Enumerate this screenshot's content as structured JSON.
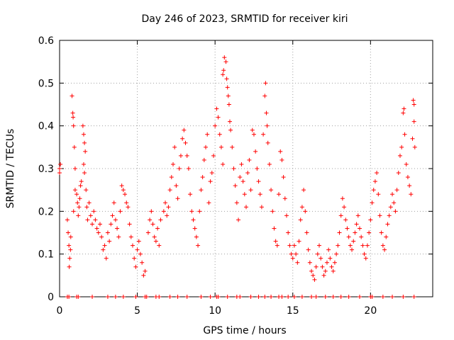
{
  "chart_data": {
    "type": "scatter",
    "title": "Day 246 of 2023, SRMTID for receiver kiri",
    "xlabel": "GPS time / hours",
    "ylabel": "SRMTID / TECUs",
    "xlim": [
      0,
      24
    ],
    "ylim": [
      0,
      0.6
    ],
    "xticks": [
      0,
      5,
      10,
      15,
      20
    ],
    "xtick_labels": [
      "0",
      "5",
      "10",
      "15",
      "20"
    ],
    "yticks": [
      0,
      0.1,
      0.2,
      0.3,
      0.4,
      0.5,
      0.6
    ],
    "ytick_labels": [
      "0",
      "0.1",
      "0.2",
      "0.3",
      "0.4",
      "0.5",
      "0.6"
    ],
    "grid": true,
    "marker": "+",
    "color": "#ff0000",
    "series": [
      {
        "name": "SRMTID",
        "points": [
          [
            0.0,
            0.3
          ],
          [
            0.0,
            0.29
          ],
          [
            0.05,
            0.31
          ],
          [
            0.5,
            0.18
          ],
          [
            0.55,
            0.15
          ],
          [
            0.6,
            0.12
          ],
          [
            0.62,
            0.07
          ],
          [
            0.65,
            0.09
          ],
          [
            0.7,
            0.11
          ],
          [
            0.72,
            0.14
          ],
          [
            0.8,
            0.47
          ],
          [
            0.85,
            0.43
          ],
          [
            0.87,
            0.42
          ],
          [
            0.9,
            0.4
          ],
          [
            0.95,
            0.35
          ],
          [
            1.0,
            0.3
          ],
          [
            1.0,
            0.25
          ],
          [
            0.9,
            0.2
          ],
          [
            1.1,
            0.24
          ],
          [
            1.15,
            0.22
          ],
          [
            1.2,
            0.19
          ],
          [
            1.25,
            0.21
          ],
          [
            1.3,
            0.23
          ],
          [
            1.35,
            0.26
          ],
          [
            1.4,
            0.27
          ],
          [
            1.5,
            0.4
          ],
          [
            1.55,
            0.38
          ],
          [
            1.6,
            0.36
          ],
          [
            1.65,
            0.34
          ],
          [
            1.55,
            0.31
          ],
          [
            1.6,
            0.29
          ],
          [
            1.7,
            0.25
          ],
          [
            1.75,
            0.21
          ],
          [
            1.8,
            0.18
          ],
          [
            1.9,
            0.22
          ],
          [
            2.0,
            0.19
          ],
          [
            2.1,
            0.17
          ],
          [
            2.2,
            0.2
          ],
          [
            2.3,
            0.18
          ],
          [
            2.4,
            0.16
          ],
          [
            2.5,
            0.15
          ],
          [
            2.6,
            0.17
          ],
          [
            2.7,
            0.14
          ],
          [
            2.8,
            0.11
          ],
          [
            2.9,
            0.12
          ],
          [
            3.0,
            0.09
          ],
          [
            3.1,
            0.15
          ],
          [
            3.2,
            0.13
          ],
          [
            3.3,
            0.17
          ],
          [
            3.4,
            0.19
          ],
          [
            3.5,
            0.22
          ],
          [
            3.6,
            0.18
          ],
          [
            3.7,
            0.16
          ],
          [
            3.8,
            0.14
          ],
          [
            3.9,
            0.2
          ],
          [
            4.0,
            0.26
          ],
          [
            4.1,
            0.25
          ],
          [
            4.2,
            0.24
          ],
          [
            4.3,
            0.22
          ],
          [
            4.4,
            0.21
          ],
          [
            4.5,
            0.17
          ],
          [
            4.6,
            0.14
          ],
          [
            4.7,
            0.12
          ],
          [
            4.8,
            0.09
          ],
          [
            4.9,
            0.07
          ],
          [
            5.0,
            0.11
          ],
          [
            5.1,
            0.13
          ],
          [
            5.2,
            0.1
          ],
          [
            5.3,
            0.08
          ],
          [
            5.4,
            0.05
          ],
          [
            5.5,
            0.06
          ],
          [
            5.7,
            0.15
          ],
          [
            5.8,
            0.18
          ],
          [
            5.9,
            0.2
          ],
          [
            6.0,
            0.17
          ],
          [
            6.1,
            0.14
          ],
          [
            6.2,
            0.13
          ],
          [
            6.3,
            0.16
          ],
          [
            6.4,
            0.12
          ],
          [
            6.5,
            0.18
          ],
          [
            6.7,
            0.2
          ],
          [
            6.8,
            0.22
          ],
          [
            6.9,
            0.19
          ],
          [
            7.0,
            0.21
          ],
          [
            7.1,
            0.25
          ],
          [
            7.2,
            0.28
          ],
          [
            7.3,
            0.31
          ],
          [
            7.4,
            0.35
          ],
          [
            7.5,
            0.26
          ],
          [
            7.6,
            0.23
          ],
          [
            7.7,
            0.3
          ],
          [
            7.8,
            0.33
          ],
          [
            7.9,
            0.37
          ],
          [
            8.0,
            0.39
          ],
          [
            8.1,
            0.36
          ],
          [
            8.2,
            0.33
          ],
          [
            8.3,
            0.3
          ],
          [
            8.4,
            0.24
          ],
          [
            8.5,
            0.2
          ],
          [
            8.6,
            0.18
          ],
          [
            8.7,
            0.16
          ],
          [
            8.8,
            0.14
          ],
          [
            8.9,
            0.12
          ],
          [
            9.0,
            0.2
          ],
          [
            9.1,
            0.25
          ],
          [
            9.2,
            0.28
          ],
          [
            9.3,
            0.32
          ],
          [
            9.4,
            0.35
          ],
          [
            9.5,
            0.38
          ],
          [
            9.6,
            0.22
          ],
          [
            9.7,
            0.27
          ],
          [
            9.8,
            0.29
          ],
          [
            9.9,
            0.33
          ],
          [
            10.0,
            0.4
          ],
          [
            10.1,
            0.44
          ],
          [
            10.2,
            0.42
          ],
          [
            10.3,
            0.38
          ],
          [
            10.4,
            0.35
          ],
          [
            10.5,
            0.31
          ],
          [
            10.6,
            0.56
          ],
          [
            10.7,
            0.55
          ],
          [
            10.75,
            0.51
          ],
          [
            10.8,
            0.49
          ],
          [
            10.85,
            0.47
          ],
          [
            10.9,
            0.45
          ],
          [
            10.95,
            0.41
          ],
          [
            11.0,
            0.39
          ],
          [
            10.5,
            0.52
          ],
          [
            10.55,
            0.53
          ],
          [
            11.1,
            0.35
          ],
          [
            11.2,
            0.3
          ],
          [
            11.3,
            0.26
          ],
          [
            11.4,
            0.22
          ],
          [
            11.5,
            0.18
          ],
          [
            11.6,
            0.28
          ],
          [
            11.7,
            0.31
          ],
          [
            11.8,
            0.27
          ],
          [
            11.9,
            0.24
          ],
          [
            12.0,
            0.21
          ],
          [
            12.1,
            0.29
          ],
          [
            12.2,
            0.32
          ],
          [
            12.3,
            0.25
          ],
          [
            12.4,
            0.39
          ],
          [
            12.5,
            0.38
          ],
          [
            12.6,
            0.34
          ],
          [
            12.7,
            0.3
          ],
          [
            12.8,
            0.27
          ],
          [
            12.9,
            0.24
          ],
          [
            13.0,
            0.21
          ],
          [
            13.1,
            0.38
          ],
          [
            13.2,
            0.47
          ],
          [
            13.25,
            0.5
          ],
          [
            13.3,
            0.43
          ],
          [
            13.35,
            0.4
          ],
          [
            13.4,
            0.36
          ],
          [
            13.5,
            0.31
          ],
          [
            13.6,
            0.25
          ],
          [
            13.7,
            0.2
          ],
          [
            13.8,
            0.16
          ],
          [
            13.9,
            0.13
          ],
          [
            14.0,
            0.12
          ],
          [
            14.1,
            0.24
          ],
          [
            14.2,
            0.34
          ],
          [
            14.3,
            0.32
          ],
          [
            14.4,
            0.28
          ],
          [
            14.5,
            0.23
          ],
          [
            14.6,
            0.19
          ],
          [
            14.7,
            0.15
          ],
          [
            14.8,
            0.12
          ],
          [
            14.9,
            0.1
          ],
          [
            15.0,
            0.09
          ],
          [
            15.1,
            0.12
          ],
          [
            15.2,
            0.1
          ],
          [
            15.3,
            0.08
          ],
          [
            15.4,
            0.13
          ],
          [
            15.5,
            0.18
          ],
          [
            15.6,
            0.21
          ],
          [
            15.7,
            0.25
          ],
          [
            15.8,
            0.2
          ],
          [
            15.9,
            0.15
          ],
          [
            16.0,
            0.11
          ],
          [
            16.1,
            0.08
          ],
          [
            16.2,
            0.06
          ],
          [
            16.3,
            0.05
          ],
          [
            16.4,
            0.04
          ],
          [
            16.5,
            0.07
          ],
          [
            16.6,
            0.1
          ],
          [
            16.7,
            0.12
          ],
          [
            16.8,
            0.09
          ],
          [
            16.9,
            0.07
          ],
          [
            17.0,
            0.05
          ],
          [
            17.1,
            0.06
          ],
          [
            17.2,
            0.08
          ],
          [
            17.3,
            0.11
          ],
          [
            17.4,
            0.09
          ],
          [
            17.5,
            0.07
          ],
          [
            17.6,
            0.06
          ],
          [
            17.7,
            0.08
          ],
          [
            17.8,
            0.1
          ],
          [
            17.9,
            0.12
          ],
          [
            18.0,
            0.15
          ],
          [
            18.1,
            0.19
          ],
          [
            18.2,
            0.23
          ],
          [
            18.3,
            0.21
          ],
          [
            18.4,
            0.18
          ],
          [
            18.5,
            0.16
          ],
          [
            18.6,
            0.14
          ],
          [
            18.7,
            0.12
          ],
          [
            18.8,
            0.11
          ],
          [
            18.9,
            0.13
          ],
          [
            19.0,
            0.15
          ],
          [
            19.1,
            0.17
          ],
          [
            19.2,
            0.19
          ],
          [
            19.3,
            0.16
          ],
          [
            19.4,
            0.14
          ],
          [
            19.5,
            0.12
          ],
          [
            19.6,
            0.1
          ],
          [
            19.7,
            0.09
          ],
          [
            19.8,
            0.12
          ],
          [
            19.9,
            0.15
          ],
          [
            20.0,
            0.18
          ],
          [
            20.1,
            0.22
          ],
          [
            20.2,
            0.25
          ],
          [
            20.3,
            0.27
          ],
          [
            20.4,
            0.29
          ],
          [
            20.5,
            0.24
          ],
          [
            20.6,
            0.19
          ],
          [
            20.7,
            0.15
          ],
          [
            20.8,
            0.12
          ],
          [
            20.9,
            0.11
          ],
          [
            21.0,
            0.14
          ],
          [
            21.1,
            0.17
          ],
          [
            21.2,
            0.19
          ],
          [
            21.3,
            0.21
          ],
          [
            21.4,
            0.24
          ],
          [
            21.5,
            0.22
          ],
          [
            21.6,
            0.2
          ],
          [
            21.7,
            0.25
          ],
          [
            21.8,
            0.29
          ],
          [
            21.9,
            0.33
          ],
          [
            22.0,
            0.35
          ],
          [
            22.1,
            0.43
          ],
          [
            22.15,
            0.44
          ],
          [
            22.2,
            0.38
          ],
          [
            22.3,
            0.31
          ],
          [
            22.4,
            0.28
          ],
          [
            22.5,
            0.26
          ],
          [
            22.6,
            0.24
          ],
          [
            22.7,
            0.37
          ],
          [
            22.75,
            0.46
          ],
          [
            22.8,
            0.45
          ],
          [
            22.8,
            0.41
          ],
          [
            22.85,
            0.35
          ]
        ]
      }
    ],
    "baseline_x": [
      0.5,
      0.6,
      1.1,
      1.2,
      2.1,
      3.1,
      3.6,
      4.1,
      4.9,
      5.5,
      5.6,
      6.2,
      6.4,
      7.1,
      7.6,
      8.2,
      9.1,
      9.7,
      10.1,
      10.2,
      10.8,
      11.4,
      11.6,
      12.3,
      12.8,
      13.2,
      13.6,
      14.1,
      14.3,
      14.7,
      15.1,
      15.6,
      16.2,
      16.5,
      17.1,
      17.6,
      18.1,
      18.6,
      19.3,
      20.0,
      20.1,
      20.8,
      21.4,
      22.1,
      22.8
    ]
  }
}
